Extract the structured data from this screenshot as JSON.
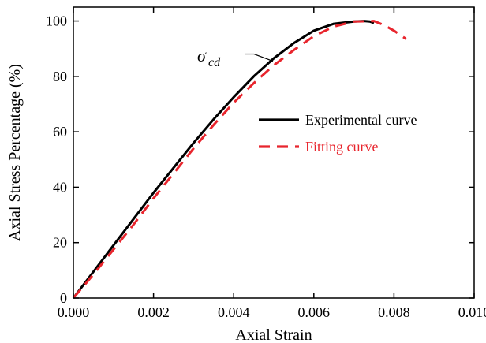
{
  "chart_data": {
    "type": "line",
    "xlabel": "Axial Strain",
    "ylabel": "Axial Stress Percentage (%)",
    "xlim": [
      0,
      0.01
    ],
    "ylim": [
      0,
      105
    ],
    "xticks": [
      "0.000",
      "0.002",
      "0.004",
      "0.006",
      "0.008",
      "0.010"
    ],
    "xtick_values": [
      0,
      0.002,
      0.004,
      0.006,
      0.008,
      0.01
    ],
    "yticks": [
      "0",
      "20",
      "40",
      "60",
      "80",
      "100"
    ],
    "ytick_values": [
      0,
      20,
      40,
      60,
      80,
      100
    ],
    "grid": false,
    "legend_position": "center-right",
    "series": [
      {
        "name": "Experimental curve",
        "color": "#000000",
        "style": "solid",
        "x": [
          0,
          0.0005,
          0.001,
          0.0015,
          0.002,
          0.0025,
          0.003,
          0.0035,
          0.004,
          0.0045,
          0.005,
          0.0055,
          0.006,
          0.0065,
          0.007,
          0.00725,
          0.0074,
          0.0075
        ],
        "y": [
          0,
          9.5,
          19,
          28.5,
          38,
          47,
          56,
          64.5,
          72.5,
          80,
          86.5,
          92,
          96.5,
          99,
          99.8,
          100,
          99.8,
          99.3
        ]
      },
      {
        "name": "Fitting curve",
        "color": "#e8252d",
        "style": "dashed",
        "x": [
          0,
          0.0005,
          0.001,
          0.0015,
          0.002,
          0.0025,
          0.003,
          0.0035,
          0.004,
          0.0045,
          0.005,
          0.0055,
          0.006,
          0.0065,
          0.007,
          0.0075,
          0.00775,
          0.008,
          0.0083
        ],
        "y": [
          0,
          8.5,
          17.5,
          26.5,
          36,
          45,
          54,
          62.5,
          70.5,
          77.5,
          84,
          89.5,
          94.5,
          98,
          99.8,
          100,
          98.5,
          96.5,
          93.5
        ]
      }
    ],
    "annotations": [
      {
        "text": "σ",
        "subscript": "cd",
        "x": 0.00498,
        "y": 85.5
      }
    ]
  }
}
